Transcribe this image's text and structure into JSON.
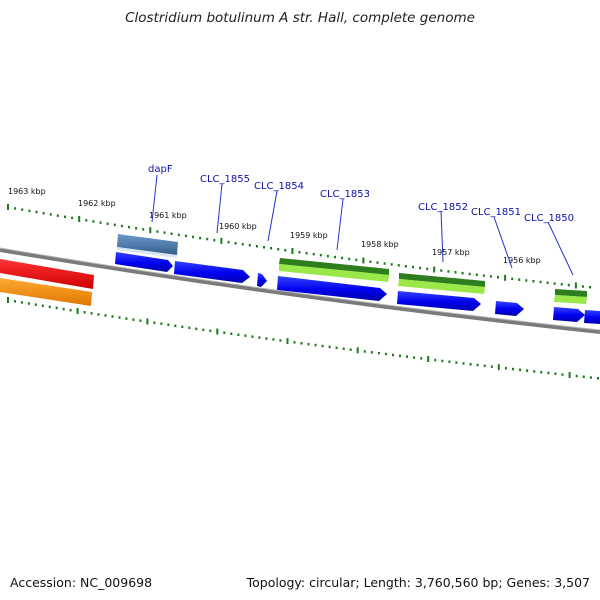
{
  "title": "Clostridium botulinum A str. Hall, complete genome",
  "accession": "Accession: NC_009698",
  "summary": "Topology: circular; Length: 3,760,560 bp; Genes: 3,507",
  "kbp_labels": [
    "1963 kbp",
    "1962 kbp",
    "1961 kbp",
    "1960 kbp",
    "1959 kbp",
    "1958 kbp",
    "1957 kbp",
    "1956 kbp"
  ],
  "gene_labels": [
    "dapF",
    "CLC_1855",
    "CLC_1854",
    "CLC_1853",
    "CLC_1852",
    "CLC_1851",
    "CLC_1850"
  ],
  "colors": {
    "cds": "#0000ee",
    "backbone": "#808080",
    "tick": "#1a7a1a",
    "label": "#1111aa",
    "dapF": "#4a7aaa",
    "red": "#ee0000",
    "orange": "#ff8800",
    "dark_green": "#2e8b1e",
    "light_green": "#99ee44"
  }
}
